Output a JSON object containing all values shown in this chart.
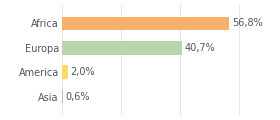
{
  "categories": [
    "Asia",
    "America",
    "Europa",
    "Africa"
  ],
  "values": [
    0.6,
    2.0,
    40.7,
    56.8
  ],
  "bar_colors": [
    "#a4c2f4",
    "#ffd966",
    "#b6d7a8",
    "#f6b26b"
  ],
  "labels": [
    "0,6%",
    "2,0%",
    "40,7%",
    "56,8%"
  ],
  "xlim": [
    0,
    72
  ],
  "background_color": "#ffffff",
  "label_fontsize": 7.0,
  "tick_fontsize": 7.0,
  "bar_height": 0.55
}
